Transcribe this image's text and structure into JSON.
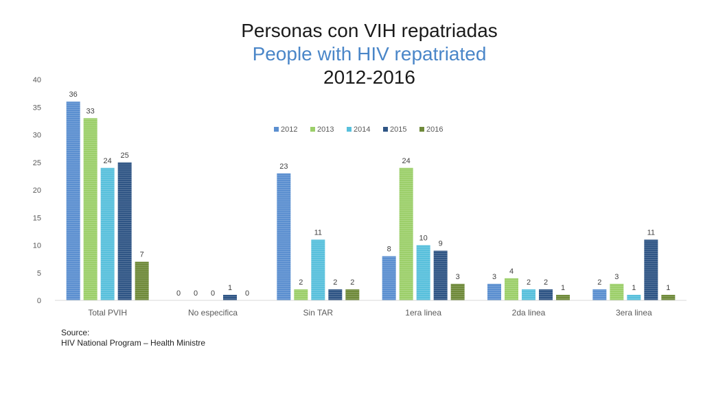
{
  "title": {
    "line1": "Personas con VIH repatriadas",
    "line2": "People with HIV repatriated",
    "line3": "2012-2016"
  },
  "source": {
    "label": "Source:",
    "text": "HIV National Program – Health Ministre"
  },
  "colors": {
    "2012": "#5b8fd0",
    "2013": "#9ccf6a",
    "2014": "#58c0dc",
    "2015": "#2f5585",
    "2016": "#6f8a3a",
    "axis": "#d9d9d9",
    "text": "#595959"
  },
  "chart_data": {
    "type": "bar",
    "title": "Personas con VIH repatriadas / People with HIV repatriated 2012-2016",
    "categories": [
      "Total PVIH",
      "No especifica",
      "Sin TAR",
      "1era linea",
      "2da linea",
      "3era linea"
    ],
    "series": [
      {
        "name": "2012",
        "values": [
          36,
          0,
          23,
          8,
          3,
          2
        ]
      },
      {
        "name": "2013",
        "values": [
          33,
          0,
          2,
          24,
          4,
          3
        ]
      },
      {
        "name": "2014",
        "values": [
          24,
          0,
          11,
          10,
          2,
          1
        ]
      },
      {
        "name": "2015",
        "values": [
          25,
          1,
          2,
          9,
          2,
          11
        ]
      },
      {
        "name": "2016",
        "values": [
          7,
          0,
          2,
          3,
          1,
          1
        ]
      }
    ],
    "ylim": [
      0,
      40
    ],
    "yticks": [
      0,
      5,
      10,
      15,
      20,
      25,
      30,
      35,
      40
    ],
    "legend_position": "top-center",
    "grid": false,
    "data_labels": true,
    "xlabel": "",
    "ylabel": ""
  }
}
